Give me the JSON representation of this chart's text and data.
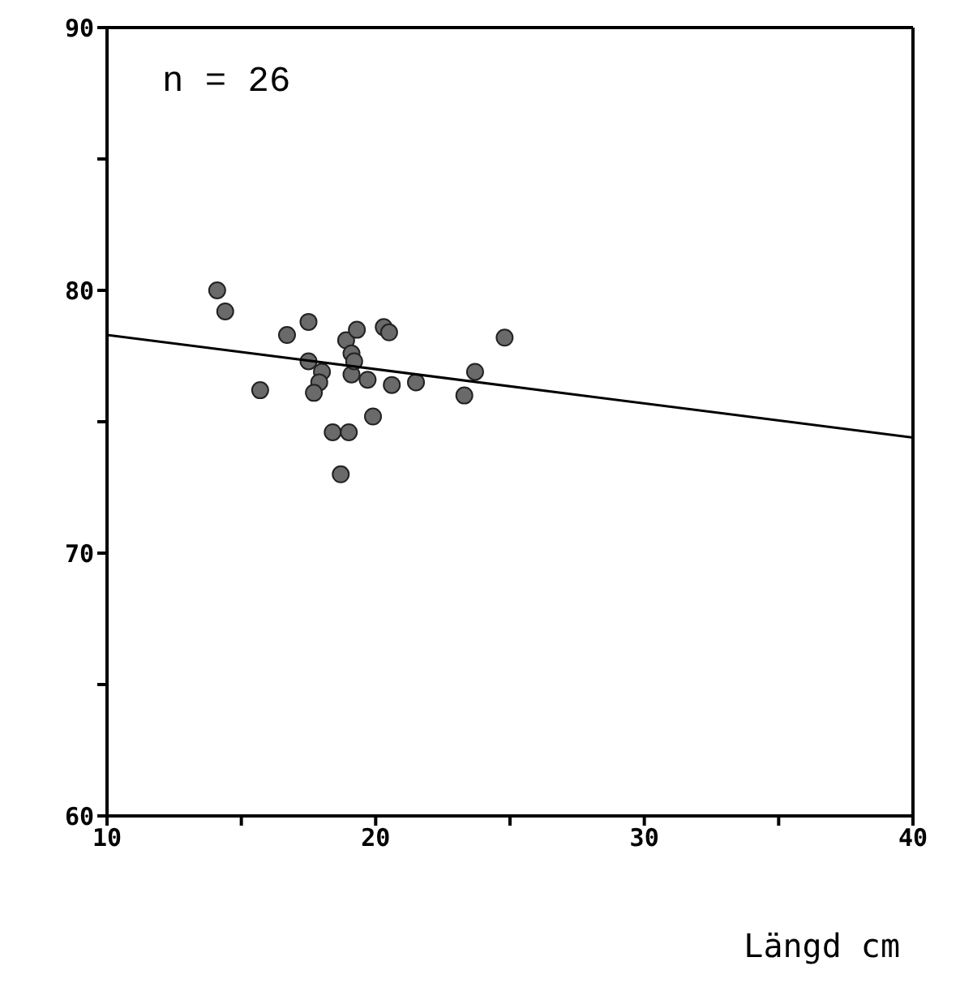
{
  "chart_data": {
    "type": "scatter",
    "xlabel": "Längd cm",
    "annotations": [
      "n = 26"
    ],
    "xlim": [
      10,
      40
    ],
    "xticks": [
      10,
      {
        "value": 15,
        "label": null
      },
      20,
      {
        "value": 25,
        "label": null
      },
      30,
      {
        "value": 35,
        "label": null
      },
      40
    ],
    "ylim": [
      60,
      90
    ],
    "yticks": [
      60,
      {
        "value": 65,
        "label": null
      },
      70,
      {
        "value": 75,
        "label": null
      },
      80,
      {
        "value": 85,
        "label": null
      },
      90
    ],
    "marker": "circle",
    "series": [
      {
        "color": "#6a6a6a",
        "x": [
          14.1,
          14.4,
          15.7,
          16.7,
          17.5,
          17.5,
          18.0,
          17.9,
          17.7,
          18.4,
          19.0,
          18.7,
          18.9,
          19.3,
          19.1,
          19.1,
          19.7,
          19.9,
          20.3,
          20.5,
          20.6,
          21.5,
          23.3,
          23.7,
          24.8,
          19.2
        ],
        "values": [
          80.0,
          79.2,
          76.2,
          78.3,
          78.8,
          77.3,
          76.9,
          76.5,
          76.1,
          74.6,
          74.6,
          73.0,
          78.1,
          78.5,
          77.6,
          76.8,
          76.6,
          75.2,
          78.6,
          78.4,
          76.4,
          76.5,
          76.0,
          76.9,
          78.2,
          77.3
        ]
      },
      {
        "type": "line",
        "color": "#000000",
        "marker": "none",
        "line_style": "solid",
        "x": [
          10,
          40
        ],
        "values": [
          78.3,
          74.4
        ]
      }
    ]
  }
}
